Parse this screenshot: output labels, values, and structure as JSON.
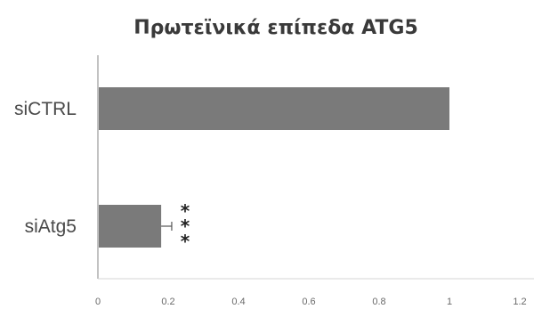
{
  "chart_data": {
    "type": "bar",
    "orientation": "horizontal",
    "title": "Πρωτεϊνικά επίπεδα ATG5",
    "xlabel": "",
    "ylabel": "",
    "categories": [
      "siCTRL",
      "siAtg5"
    ],
    "values": [
      1.0,
      0.18
    ],
    "error": [
      0,
      0.03
    ],
    "significance": [
      "",
      "*\n*\n*"
    ],
    "xlim": [
      0,
      1.2
    ],
    "x_ticks": [
      "0",
      "0.2",
      "0.4",
      "0.6",
      "0.8",
      "1",
      "1.2"
    ],
    "grid": false,
    "legend": "none",
    "bar_color": "#7a7a7a",
    "axis_color": "#9a9a9a"
  }
}
